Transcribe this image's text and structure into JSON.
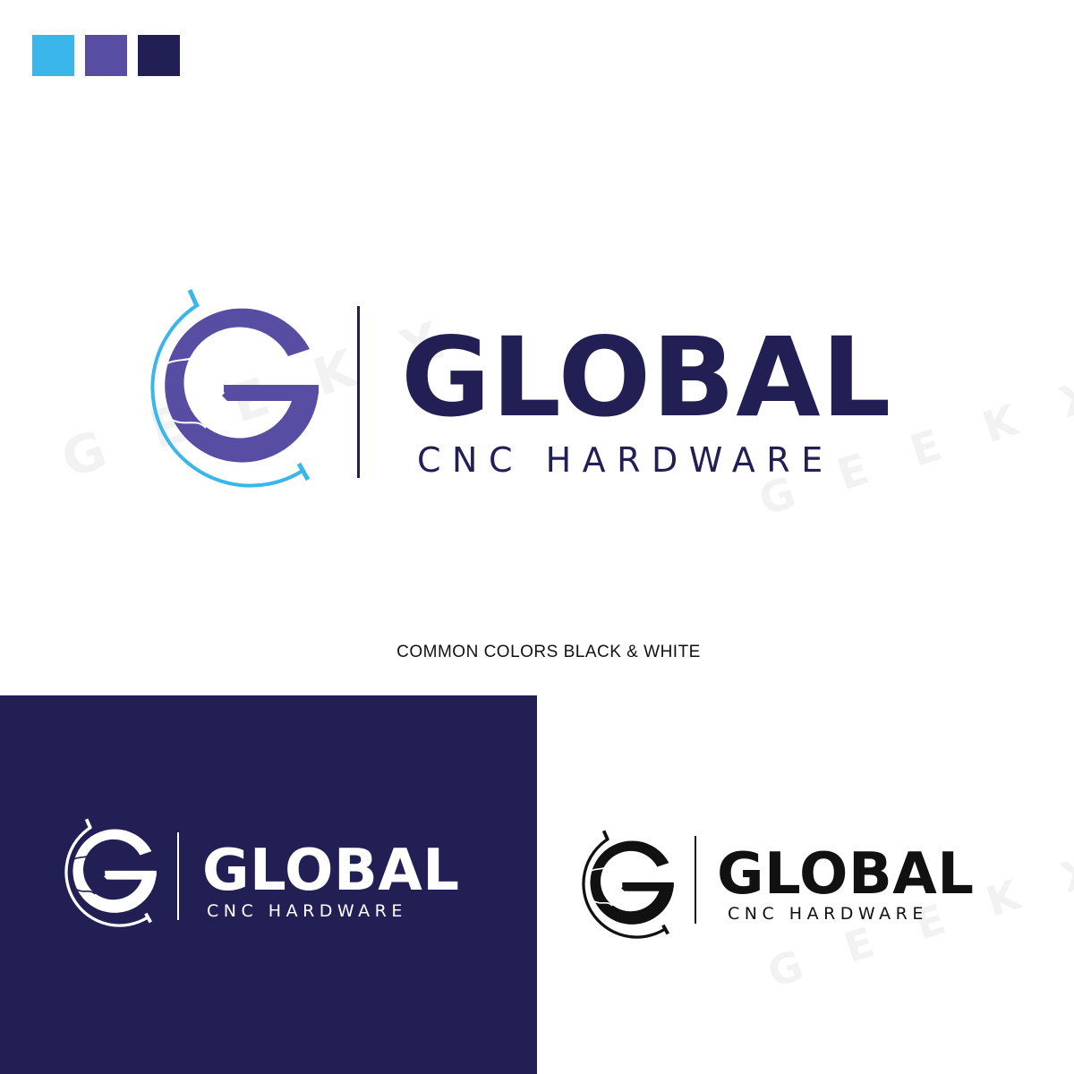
{
  "palette": {
    "swatches": [
      "#3BB6EA",
      "#574EA4",
      "#221F54"
    ]
  },
  "colors": {
    "light_blue": "#3BB6EA",
    "purple": "#574EA4",
    "navy": "#221F54",
    "white": "#FFFFFF",
    "black": "#111111"
  },
  "main_logo": {
    "title": "GLOBAL",
    "subtitle": "CNC HARDWARE"
  },
  "caption": "COMMON COLORS BLACK & WHITE",
  "inverse_logo": {
    "title": "GLOBAL",
    "subtitle": "CNC HARDWARE"
  },
  "black_logo": {
    "title": "GLOBAL",
    "subtitle": "CNC HARDWARE"
  },
  "watermark": {
    "text": "GEEKX"
  }
}
